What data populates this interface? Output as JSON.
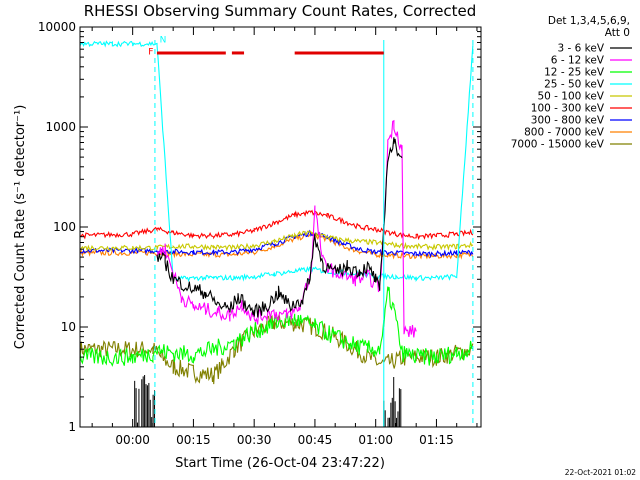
{
  "chart_data": {
    "type": "line",
    "title": "RHESSI Observing Summary Count Rates, Corrected",
    "xlabel": "Start Time (26-Oct-04 23:47:22)",
    "ylabel": "Corrected Count Rate (s⁻¹ detector⁻¹)",
    "yscale": "log",
    "ylim": [
      1,
      10000
    ],
    "xlim_minutes": [
      -13,
      86
    ],
    "x_ticks": [
      {
        "m": 0,
        "label": "00:00"
      },
      {
        "m": 15,
        "label": "00:15"
      },
      {
        "m": 30,
        "label": "00:30"
      },
      {
        "m": 45,
        "label": "00:45"
      },
      {
        "m": 60,
        "label": "01:00"
      },
      {
        "m": 75,
        "label": "01:15"
      }
    ],
    "y_ticks": [
      {
        "v": 1,
        "label": "1"
      },
      {
        "v": 10,
        "label": "10"
      },
      {
        "v": 100,
        "label": "100"
      },
      {
        "v": 1000,
        "label": "1000"
      },
      {
        "v": 10000,
        "label": "10000"
      }
    ],
    "legend_header": [
      "Det 1,3,4,5,6,9,",
      "Att 0"
    ],
    "legend_position": "right",
    "series": [
      {
        "name": "3 - 6 keV",
        "color": "#000000",
        "x": [
          -13,
          5.5,
          6,
          8,
          10,
          14,
          18,
          21,
          24,
          26,
          30,
          33,
          36,
          39,
          42,
          43.5,
          45,
          47,
          50,
          53,
          56,
          58,
          60,
          61,
          62,
          63,
          64.5,
          66.5
        ],
        "y": [
          null,
          null,
          52,
          45,
          30,
          25,
          22,
          17,
          15,
          20,
          14,
          16,
          22,
          16,
          19,
          28,
          80,
          42,
          35,
          40,
          36,
          40,
          30,
          22,
          100,
          500,
          680,
          520
        ]
      },
      {
        "name": "6 - 12 keV",
        "color": "#ff00ff",
        "x": [
          -13,
          5.5,
          6,
          8,
          10,
          12,
          15,
          18,
          21,
          24,
          27,
          30,
          34,
          38,
          41,
          44,
          45,
          47,
          50,
          55,
          58,
          61,
          62,
          63,
          64.5,
          66.5,
          67,
          70
        ],
        "y": [
          null,
          null,
          55,
          60,
          35,
          20,
          16,
          15,
          14,
          13,
          17,
          12,
          14,
          13,
          15,
          35,
          150,
          45,
          35,
          30,
          32,
          25,
          90,
          700,
          1100,
          600,
          9,
          9
        ]
      },
      {
        "name": "12 - 25 keV",
        "color": "#00ff00",
        "x": [
          -13,
          0,
          5,
          6,
          10,
          15,
          20,
          25,
          30,
          35,
          40,
          45,
          50,
          55,
          58,
          61,
          62,
          63,
          64.5,
          66.5,
          70,
          75,
          80,
          84
        ],
        "y": [
          5,
          5,
          5.5,
          5.8,
          5.5,
          5.3,
          6,
          7,
          9,
          11,
          12,
          10,
          8,
          6.5,
          6,
          6,
          10,
          22,
          15,
          5.5,
          5,
          5,
          5.5,
          6
        ]
      },
      {
        "name": "25 - 50 keV",
        "color": "#00ffff",
        "x": [
          -13,
          -5,
          0,
          6,
          10,
          15,
          20,
          25,
          30,
          35,
          40,
          44,
          48,
          52,
          56,
          60,
          65,
          70,
          75,
          80,
          84
        ],
        "y": [
          6800,
          6800,
          6800,
          6800,
          30,
          31,
          31,
          31,
          32,
          34,
          36,
          38,
          36,
          35,
          34,
          32,
          32,
          31,
          31,
          32,
          6800
        ]
      },
      {
        "name": "50 - 100 keV",
        "color": "#c8c800",
        "x": [
          -13,
          0,
          6,
          10,
          15,
          20,
          25,
          30,
          35,
          40,
          43,
          46,
          50,
          55,
          60,
          65,
          70,
          75,
          80,
          84
        ],
        "y": [
          62,
          62,
          62,
          64,
          64,
          63,
          62,
          65,
          72,
          82,
          88,
          84,
          76,
          72,
          70,
          66,
          64,
          63,
          64,
          66
        ]
      },
      {
        "name": "100 - 300 keV",
        "color": "#ff0000",
        "x": [
          -13,
          0,
          6,
          10,
          15,
          20,
          25,
          30,
          35,
          40,
          44,
          48,
          52,
          56,
          60,
          65,
          70,
          75,
          80,
          84
        ],
        "y": [
          82,
          85,
          95,
          88,
          82,
          82,
          84,
          92,
          110,
          132,
          140,
          130,
          115,
          100,
          95,
          85,
          80,
          82,
          85,
          88
        ]
      },
      {
        "name": "300 - 800 keV",
        "color": "#0000ff",
        "x": [
          -13,
          0,
          6,
          10,
          15,
          20,
          25,
          30,
          35,
          40,
          44,
          48,
          52,
          56,
          60,
          65,
          70,
          75,
          80,
          84
        ],
        "y": [
          58,
          58,
          58,
          57,
          56,
          56,
          56,
          60,
          68,
          80,
          87,
          80,
          68,
          60,
          56,
          55,
          54,
          54,
          55,
          56
        ]
      },
      {
        "name": "800 - 7000 keV",
        "color": "#ff8000",
        "x": [
          -13,
          0,
          6,
          10,
          15,
          20,
          25,
          30,
          35,
          40,
          44,
          48,
          52,
          56,
          60,
          65,
          70,
          75,
          80,
          84
        ],
        "y": [
          55,
          55,
          55,
          54,
          53,
          53,
          53,
          56,
          64,
          76,
          84,
          76,
          64,
          57,
          53,
          52,
          51,
          51,
          52,
          53
        ]
      },
      {
        "name": "7000 - 15000 keV",
        "color": "#808000",
        "x": [
          -13,
          0,
          5,
          7,
          10,
          15,
          20,
          22,
          25,
          30,
          35,
          40,
          45,
          50,
          55,
          60,
          62,
          64,
          66,
          70,
          75,
          80,
          84
        ],
        "y": [
          6,
          6,
          6,
          5,
          4,
          3.5,
          3.3,
          4,
          6,
          9,
          11,
          11,
          10,
          8,
          6,
          4.5,
          4.2,
          4.5,
          4.8,
          5,
          5,
          5.5,
          6
        ]
      }
    ],
    "black_spikes": {
      "x_ranges": [
        [
          0.5,
          5.5
        ],
        [
          62,
          66.5
        ]
      ],
      "y_level": 1.2
    },
    "vlines_minutes": [
      -13,
      5.5,
      62,
      84
    ],
    "vline_color": "#00ffff",
    "flag_bars": {
      "color": "#e00000",
      "y_value": 5500,
      "segments": [
        [
          6,
          23
        ],
        [
          24.5,
          27.5
        ],
        [
          40,
          62
        ]
      ]
    },
    "annotations": [
      {
        "text": "F",
        "color": "#ff0000",
        "m": 4.5,
        "v": 5300
      },
      {
        "text": "N",
        "color": "#00ffff",
        "m": 7.5,
        "v": 7000
      }
    ],
    "footer_date": "22-Oct-2021 01:02"
  }
}
